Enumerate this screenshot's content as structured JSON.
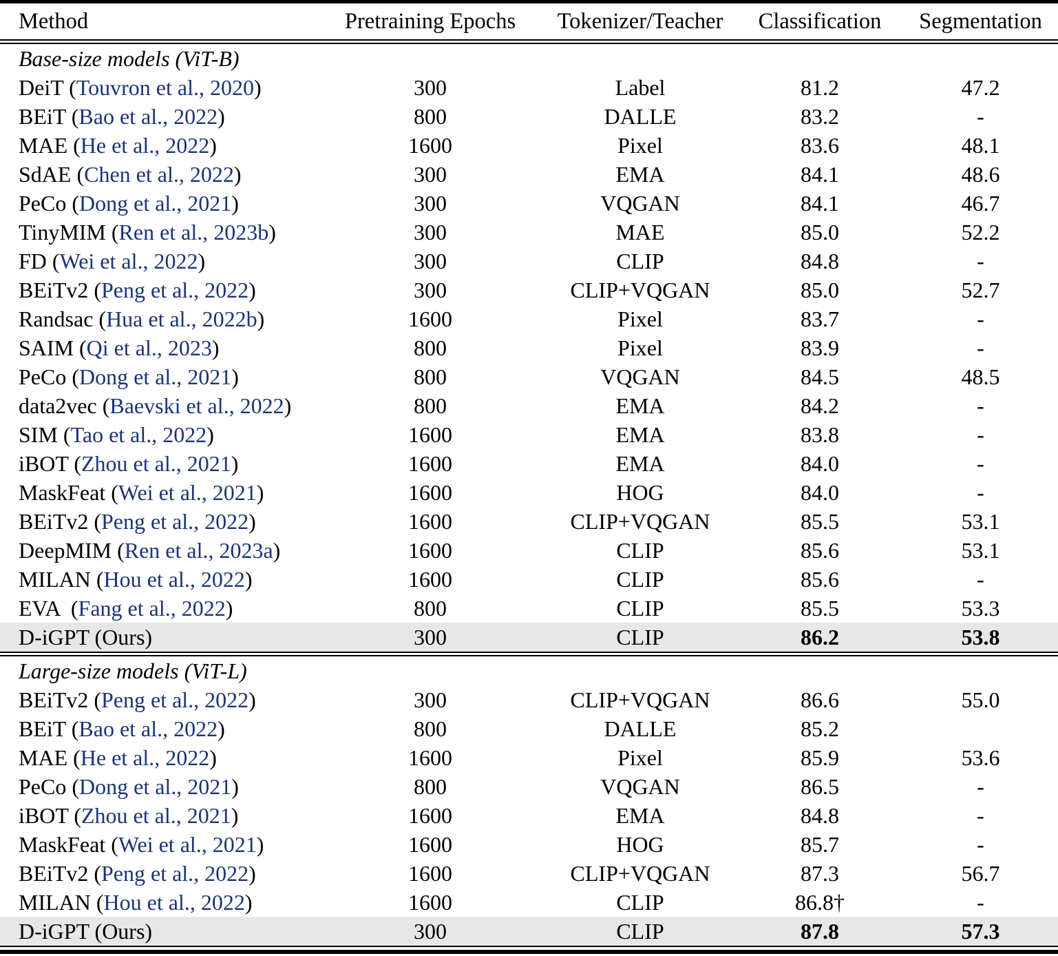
{
  "table": {
    "columns": [
      {
        "key": "method",
        "label": "Method"
      },
      {
        "key": "epochs",
        "label": "Pretraining Epochs"
      },
      {
        "key": "teacher",
        "label": "Tokenizer/Teacher"
      },
      {
        "key": "classification",
        "label": "Classification"
      },
      {
        "key": "segmentation",
        "label": "Segmentation"
      }
    ],
    "sections": [
      {
        "label": "Base-size models (ViT-B)",
        "rows": [
          {
            "pre": "DeiT (",
            "cite": "Touvron et al., 2020",
            "post": ")",
            "epochs": "300",
            "teacher": "Label",
            "cls": "81.2",
            "seg": "47.2",
            "highlight": false,
            "bold": false
          },
          {
            "pre": "BEiT (",
            "cite": "Bao et al., 2022",
            "post": ")",
            "epochs": "800",
            "teacher": "DALLE",
            "cls": "83.2",
            "seg": "-",
            "highlight": false,
            "bold": false
          },
          {
            "pre": "MAE (",
            "cite": "He et al., 2022",
            "post": ")",
            "epochs": "1600",
            "teacher": "Pixel",
            "cls": "83.6",
            "seg": "48.1",
            "highlight": false,
            "bold": false
          },
          {
            "pre": "SdAE (",
            "cite": "Chen et al., 2022",
            "post": ")",
            "epochs": "300",
            "teacher": "EMA",
            "cls": "84.1",
            "seg": "48.6",
            "highlight": false,
            "bold": false
          },
          {
            "pre": "PeCo (",
            "cite": "Dong et al., 2021",
            "post": ")",
            "epochs": "300",
            "teacher": "VQGAN",
            "cls": "84.1",
            "seg": "46.7",
            "highlight": false,
            "bold": false
          },
          {
            "pre": "TinyMIM (",
            "cite": "Ren et al., 2023b",
            "post": ")",
            "epochs": "300",
            "teacher": "MAE",
            "cls": "85.0",
            "seg": "52.2",
            "highlight": false,
            "bold": false
          },
          {
            "pre": "FD (",
            "cite": "Wei et al., 2022",
            "post": ")",
            "epochs": "300",
            "teacher": "CLIP",
            "cls": "84.8",
            "seg": "-",
            "highlight": false,
            "bold": false
          },
          {
            "pre": "BEiTv2 (",
            "cite": "Peng et al., 2022",
            "post": ")",
            "epochs": "300",
            "teacher": "CLIP+VQGAN",
            "cls": "85.0",
            "seg": "52.7",
            "highlight": false,
            "bold": false
          },
          {
            "pre": "Randsac (",
            "cite": "Hua et al., 2022b",
            "post": ")",
            "epochs": "1600",
            "teacher": "Pixel",
            "cls": "83.7",
            "seg": "-",
            "highlight": false,
            "bold": false
          },
          {
            "pre": "SAIM (",
            "cite": "Qi et al., 2023",
            "post": ")",
            "epochs": "800",
            "teacher": "Pixel",
            "cls": "83.9",
            "seg": "-",
            "highlight": false,
            "bold": false
          },
          {
            "pre": "PeCo (",
            "cite": "Dong et al., 2021",
            "post": ")",
            "epochs": "800",
            "teacher": "VQGAN",
            "cls": "84.5",
            "seg": "48.5",
            "highlight": false,
            "bold": false
          },
          {
            "pre": "data2vec (",
            "cite": "Baevski et al., 2022",
            "post": ")",
            "epochs": "800",
            "teacher": "EMA",
            "cls": "84.2",
            "seg": "-",
            "highlight": false,
            "bold": false
          },
          {
            "pre": "SIM (",
            "cite": "Tao et al., 2022",
            "post": ")",
            "epochs": "1600",
            "teacher": "EMA",
            "cls": "83.8",
            "seg": "-",
            "highlight": false,
            "bold": false
          },
          {
            "pre": "iBOT (",
            "cite": "Zhou et al., 2021",
            "post": ")",
            "epochs": "1600",
            "teacher": "EMA",
            "cls": "84.0",
            "seg": "-",
            "highlight": false,
            "bold": false
          },
          {
            "pre": "MaskFeat (",
            "cite": "Wei et al., 2021",
            "post": ")",
            "epochs": "1600",
            "teacher": "HOG",
            "cls": "84.0",
            "seg": "-",
            "highlight": false,
            "bold": false
          },
          {
            "pre": "BEiTv2 (",
            "cite": "Peng et al., 2022",
            "post": ")",
            "epochs": "1600",
            "teacher": "CLIP+VQGAN",
            "cls": "85.5",
            "seg": "53.1",
            "highlight": false,
            "bold": false
          },
          {
            "pre": "DeepMIM (",
            "cite": "Ren et al., 2023a",
            "post": ")",
            "epochs": "1600",
            "teacher": "CLIP",
            "cls": "85.6",
            "seg": "53.1",
            "highlight": false,
            "bold": false
          },
          {
            "pre": "MILAN (",
            "cite": "Hou et al., 2022",
            "post": ")",
            "epochs": "1600",
            "teacher": "CLIP",
            "cls": "85.6",
            "seg": "-",
            "highlight": false,
            "bold": false
          },
          {
            "pre": "EVA  (",
            "cite": "Fang et al., 2022",
            "post": ")",
            "epochs": "800",
            "teacher": "CLIP",
            "cls": "85.5",
            "seg": "53.3",
            "highlight": false,
            "bold": false
          },
          {
            "pre": "D-iGPT (Ours)",
            "cite": "",
            "post": "",
            "epochs": "300",
            "teacher": "CLIP",
            "cls": "86.2",
            "seg": "53.8",
            "highlight": true,
            "bold": true
          }
        ]
      },
      {
        "label": "Large-size models (ViT-L)",
        "rows": [
          {
            "pre": "BEiTv2 (",
            "cite": "Peng et al., 2022",
            "post": ")",
            "epochs": "300",
            "teacher": "CLIP+VQGAN",
            "cls": "86.6",
            "seg": "55.0",
            "highlight": false,
            "bold": false
          },
          {
            "pre": "BEiT (",
            "cite": "Bao et al., 2022",
            "post": ")",
            "epochs": "800",
            "teacher": "DALLE",
            "cls": "85.2",
            "seg": "",
            "highlight": false,
            "bold": false
          },
          {
            "pre": "MAE (",
            "cite": "He et al., 2022",
            "post": ")",
            "epochs": "1600",
            "teacher": "Pixel",
            "cls": "85.9",
            "seg": "53.6",
            "highlight": false,
            "bold": false
          },
          {
            "pre": "PeCo (",
            "cite": "Dong et al., 2021",
            "post": ")",
            "epochs": "800",
            "teacher": "VQGAN",
            "cls": "86.5",
            "seg": "-",
            "highlight": false,
            "bold": false
          },
          {
            "pre": "iBOT (",
            "cite": "Zhou et al., 2021",
            "post": ")",
            "epochs": "1600",
            "teacher": "EMA",
            "cls": "84.8",
            "seg": "-",
            "highlight": false,
            "bold": false
          },
          {
            "pre": "MaskFeat (",
            "cite": "Wei et al., 2021",
            "post": ")",
            "epochs": "1600",
            "teacher": "HOG",
            "cls": "85.7",
            "seg": "-",
            "highlight": false,
            "bold": false
          },
          {
            "pre": "BEiTv2 (",
            "cite": "Peng et al., 2022",
            "post": ")",
            "epochs": "1600",
            "teacher": "CLIP+VQGAN",
            "cls": "87.3",
            "seg": "56.7",
            "highlight": false,
            "bold": false
          },
          {
            "pre": "MILAN (",
            "cite": "Hou et al., 2022",
            "post": ")",
            "epochs": "1600",
            "teacher": "CLIP",
            "cls": "86.8†",
            "seg": "-",
            "highlight": false,
            "bold": false
          },
          {
            "pre": "D-iGPT (Ours)",
            "cite": "",
            "post": "",
            "epochs": "300",
            "teacher": "CLIP",
            "cls": "87.8",
            "seg": "57.3",
            "highlight": true,
            "bold": true
          }
        ]
      }
    ]
  },
  "colors": {
    "citation": "#1b3377",
    "highlight_row": "#e7e7e7",
    "ink": "#000000"
  }
}
